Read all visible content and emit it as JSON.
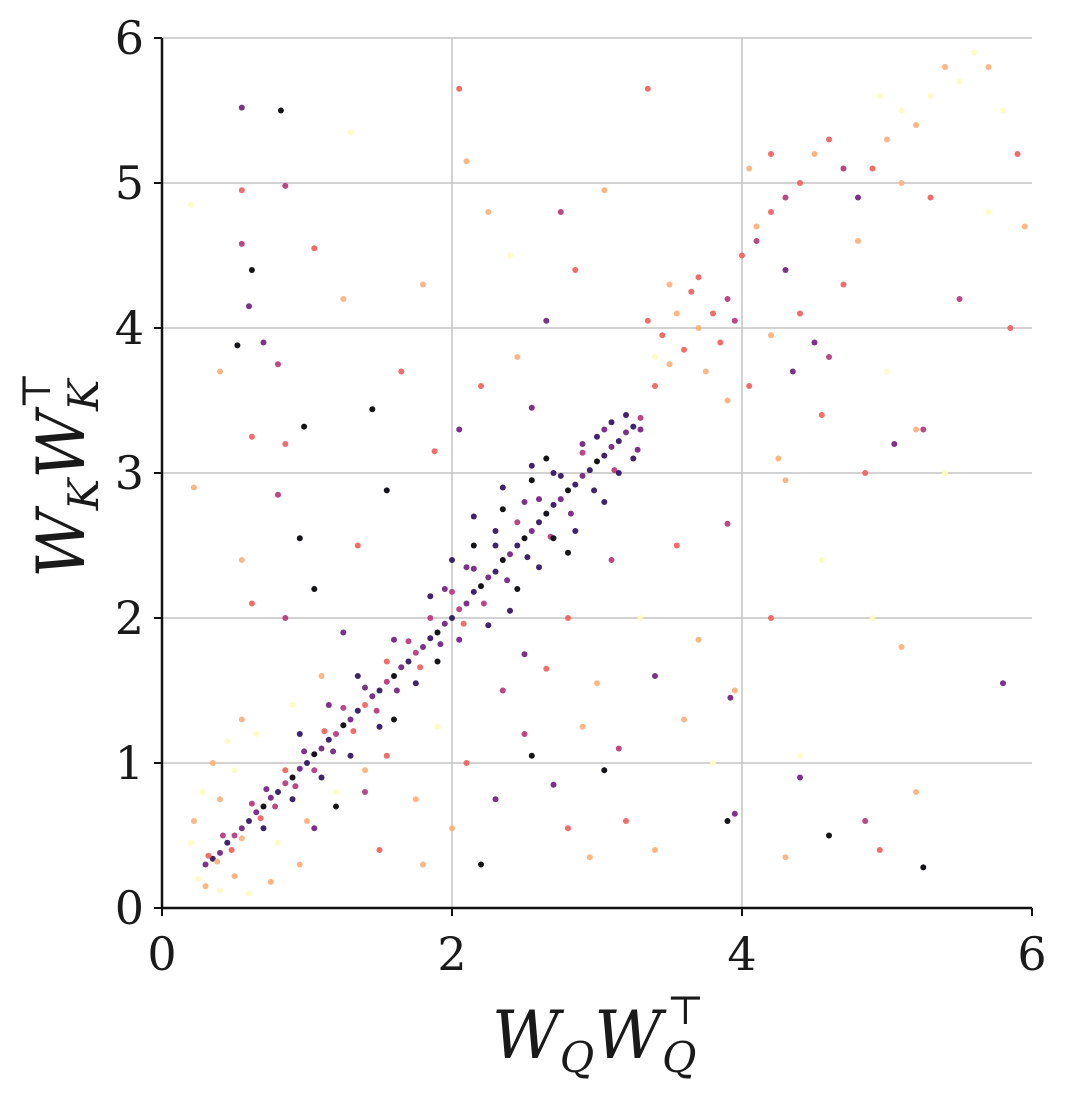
{
  "chart_data": {
    "type": "scatter",
    "xlabel": {
      "base": "W",
      "sub": "Q",
      "base2": "W",
      "sub2": "Q",
      "sup2": "⊤"
    },
    "ylabel": {
      "base": "W",
      "sub": "K",
      "base2": "W",
      "sub2": "K",
      "sup2": "⊤"
    },
    "xlim": [
      0,
      6
    ],
    "ylim": [
      0,
      6
    ],
    "x_ticks": [
      0,
      2,
      4,
      6
    ],
    "y_ticks": [
      0,
      1,
      2,
      3,
      4,
      5,
      6
    ],
    "x_tick_labels": [
      "0",
      "2",
      "4",
      "6"
    ],
    "y_tick_labels": [
      "0",
      "1",
      "2",
      "3",
      "4",
      "5",
      "6"
    ],
    "x_gridlines": [
      2,
      4
    ],
    "y_gridlines": [
      1,
      2,
      3,
      4,
      5,
      6
    ],
    "grid": true,
    "colormap": [
      "#000004",
      "#2c115f",
      "#721f81",
      "#b73779",
      "#f1605d",
      "#feb078",
      "#fcfdbf"
    ],
    "points": [
      [
        0.3,
        0.3,
        2
      ],
      [
        0.35,
        0.34,
        1
      ],
      [
        0.4,
        0.38,
        2
      ],
      [
        0.45,
        0.45,
        1
      ],
      [
        0.5,
        0.5,
        3
      ],
      [
        0.55,
        0.55,
        2
      ],
      [
        0.6,
        0.6,
        1
      ],
      [
        0.65,
        0.66,
        2
      ],
      [
        0.7,
        0.7,
        0
      ],
      [
        0.75,
        0.76,
        2
      ],
      [
        0.8,
        0.8,
        1
      ],
      [
        0.85,
        0.86,
        3
      ],
      [
        0.9,
        0.9,
        0
      ],
      [
        0.95,
        0.96,
        2
      ],
      [
        1.0,
        1.0,
        1
      ],
      [
        1.05,
        1.06,
        0
      ],
      [
        1.1,
        1.1,
        2
      ],
      [
        1.15,
        1.16,
        1
      ],
      [
        1.2,
        1.2,
        3
      ],
      [
        1.25,
        1.26,
        0
      ],
      [
        1.3,
        1.3,
        2
      ],
      [
        1.35,
        1.36,
        1
      ],
      [
        1.4,
        1.4,
        4
      ],
      [
        1.45,
        1.46,
        2
      ],
      [
        1.5,
        1.5,
        1
      ],
      [
        1.55,
        1.56,
        3
      ],
      [
        1.6,
        1.6,
        0
      ],
      [
        1.65,
        1.66,
        2
      ],
      [
        1.7,
        1.7,
        1
      ],
      [
        1.75,
        1.76,
        3
      ],
      [
        1.8,
        1.8,
        2
      ],
      [
        1.85,
        1.86,
        1
      ],
      [
        1.9,
        1.9,
        0
      ],
      [
        1.95,
        1.96,
        2
      ],
      [
        2.0,
        2.0,
        1
      ],
      [
        2.05,
        2.06,
        3
      ],
      [
        2.1,
        2.1,
        2
      ],
      [
        2.15,
        2.18,
        1
      ],
      [
        2.2,
        2.22,
        0
      ],
      [
        2.25,
        2.28,
        2
      ],
      [
        2.3,
        2.32,
        1
      ],
      [
        2.35,
        2.4,
        0
      ],
      [
        2.4,
        2.44,
        2
      ],
      [
        2.45,
        2.5,
        1
      ],
      [
        2.5,
        2.55,
        0
      ],
      [
        2.55,
        2.6,
        2
      ],
      [
        2.6,
        2.66,
        1
      ],
      [
        2.65,
        2.72,
        0
      ],
      [
        2.7,
        2.78,
        1
      ],
      [
        2.75,
        2.82,
        2
      ],
      [
        2.8,
        2.88,
        0
      ],
      [
        2.85,
        2.92,
        1
      ],
      [
        2.9,
        2.98,
        2
      ],
      [
        2.95,
        3.02,
        1
      ],
      [
        3.0,
        3.08,
        0
      ],
      [
        3.05,
        3.12,
        1
      ],
      [
        3.1,
        3.18,
        2
      ],
      [
        3.15,
        3.22,
        1
      ],
      [
        3.2,
        3.28,
        2
      ],
      [
        3.25,
        3.32,
        1
      ],
      [
        3.3,
        3.38,
        3
      ],
      [
        0.32,
        0.36,
        4
      ],
      [
        0.38,
        0.32,
        5
      ],
      [
        0.42,
        0.5,
        3
      ],
      [
        0.48,
        0.4,
        4
      ],
      [
        0.55,
        0.48,
        5
      ],
      [
        0.62,
        0.72,
        3
      ],
      [
        0.68,
        0.62,
        4
      ],
      [
        0.72,
        0.82,
        2
      ],
      [
        0.78,
        0.7,
        3
      ],
      [
        0.85,
        0.95,
        4
      ],
      [
        0.92,
        0.84,
        3
      ],
      [
        0.98,
        1.08,
        2
      ],
      [
        1.05,
        0.95,
        3
      ],
      [
        1.12,
        1.22,
        4
      ],
      [
        1.18,
        1.08,
        2
      ],
      [
        1.25,
        1.38,
        3
      ],
      [
        1.32,
        1.22,
        4
      ],
      [
        1.4,
        1.52,
        2
      ],
      [
        1.48,
        1.36,
        3
      ],
      [
        1.55,
        1.7,
        4
      ],
      [
        1.62,
        1.5,
        2
      ],
      [
        1.7,
        1.84,
        3
      ],
      [
        1.78,
        1.66,
        4
      ],
      [
        1.85,
        2.0,
        3
      ],
      [
        1.92,
        1.82,
        2
      ],
      [
        2.0,
        2.18,
        3
      ],
      [
        2.08,
        1.96,
        4
      ],
      [
        2.15,
        2.34,
        2
      ],
      [
        2.22,
        2.1,
        3
      ],
      [
        2.3,
        2.5,
        1
      ],
      [
        2.38,
        2.26,
        2
      ],
      [
        2.45,
        2.66,
        3
      ],
      [
        2.52,
        2.42,
        1
      ],
      [
        2.6,
        2.82,
        2
      ],
      [
        2.68,
        2.56,
        3
      ],
      [
        2.75,
        2.98,
        1
      ],
      [
        2.82,
        2.72,
        2
      ],
      [
        2.9,
        3.14,
        3
      ],
      [
        2.98,
        2.88,
        1
      ],
      [
        3.05,
        3.3,
        2
      ],
      [
        3.12,
        3.02,
        3
      ],
      [
        3.2,
        3.4,
        1
      ],
      [
        3.28,
        3.16,
        2
      ],
      [
        0.25,
        0.2,
        6
      ],
      [
        0.3,
        0.15,
        5
      ],
      [
        0.4,
        0.12,
        6
      ],
      [
        0.5,
        0.22,
        5
      ],
      [
        0.6,
        0.1,
        6
      ],
      [
        0.75,
        0.18,
        5
      ],
      [
        0.2,
        0.45,
        6
      ],
      [
        0.22,
        0.6,
        5
      ],
      [
        0.28,
        0.8,
        6
      ],
      [
        0.35,
        1.0,
        5
      ],
      [
        0.45,
        1.15,
        6
      ],
      [
        0.55,
        1.3,
        5
      ],
      [
        0.65,
        1.2,
        6
      ],
      [
        0.5,
        0.95,
        6
      ],
      [
        0.4,
        0.75,
        5
      ],
      [
        0.8,
        0.45,
        6
      ],
      [
        1.0,
        0.6,
        5
      ],
      [
        1.2,
        0.8,
        6
      ],
      [
        1.4,
        0.95,
        5
      ],
      [
        0.9,
        1.4,
        6
      ],
      [
        1.1,
        1.6,
        5
      ],
      [
        3.4,
        3.6,
        4
      ],
      [
        3.5,
        3.75,
        5
      ],
      [
        3.6,
        3.85,
        4
      ],
      [
        3.7,
        4.0,
        5
      ],
      [
        3.8,
        4.1,
        4
      ],
      [
        3.9,
        4.2,
        3
      ],
      [
        3.45,
        3.95,
        4
      ],
      [
        3.55,
        4.1,
        5
      ],
      [
        3.65,
        4.25,
        4
      ],
      [
        3.75,
        3.7,
        5
      ],
      [
        3.85,
        3.9,
        4
      ],
      [
        3.95,
        4.05,
        3
      ],
      [
        3.35,
        4.05,
        4
      ],
      [
        3.5,
        4.3,
        5
      ],
      [
        3.7,
        4.35,
        4
      ],
      [
        3.4,
        3.8,
        6
      ],
      [
        4.0,
        4.5,
        4
      ],
      [
        4.1,
        4.7,
        5
      ],
      [
        4.2,
        4.8,
        4
      ],
      [
        4.3,
        4.9,
        3
      ],
      [
        4.4,
        5.0,
        4
      ],
      [
        4.5,
        5.2,
        5
      ],
      [
        4.6,
        5.3,
        4
      ],
      [
        4.7,
        5.1,
        3
      ],
      [
        4.8,
        4.9,
        2
      ],
      [
        4.9,
        5.1,
        4
      ],
      [
        5.0,
        5.3,
        5
      ],
      [
        5.1,
        5.5,
        6
      ],
      [
        5.2,
        5.4,
        5
      ],
      [
        5.3,
        5.6,
        6
      ],
      [
        5.4,
        5.8,
        5
      ],
      [
        5.5,
        5.7,
        6
      ],
      [
        5.6,
        5.9,
        6
      ],
      [
        5.7,
        5.8,
        5
      ],
      [
        5.8,
        5.5,
        6
      ],
      [
        5.9,
        5.2,
        4
      ],
      [
        5.95,
        4.7,
        5
      ],
      [
        5.85,
        4.0,
        4
      ],
      [
        5.7,
        4.8,
        6
      ],
      [
        5.5,
        4.2,
        3
      ],
      [
        5.3,
        4.9,
        4
      ],
      [
        5.1,
        5.0,
        5
      ],
      [
        4.95,
        5.6,
        6
      ],
      [
        4.2,
        5.2,
        4
      ],
      [
        4.05,
        5.1,
        5
      ],
      [
        4.1,
        4.6,
        3
      ],
      [
        4.3,
        4.4,
        2
      ],
      [
        4.4,
        4.1,
        4
      ],
      [
        4.5,
        3.9,
        2
      ],
      [
        4.6,
        3.8,
        3
      ],
      [
        4.7,
        4.3,
        4
      ],
      [
        4.8,
        4.6,
        5
      ],
      [
        5.0,
        3.7,
        6
      ],
      [
        5.2,
        3.3,
        5
      ],
      [
        5.4,
        3.0,
        6
      ],
      [
        3.9,
        3.5,
        5
      ],
      [
        4.05,
        3.6,
        4
      ],
      [
        4.2,
        3.95,
        5
      ],
      [
        4.35,
        3.7,
        2
      ],
      [
        4.25,
        3.1,
        5
      ],
      [
        4.55,
        3.4,
        4
      ],
      [
        4.85,
        3.0,
        4
      ],
      [
        5.05,
        3.2,
        2
      ],
      [
        5.25,
        3.3,
        3
      ],
      [
        0.55,
        5.52,
        2
      ],
      [
        0.82,
        5.5,
        0
      ],
      [
        0.2,
        4.85,
        6
      ],
      [
        0.55,
        4.95,
        4
      ],
      [
        0.85,
        4.98,
        3
      ],
      [
        0.55,
        4.58,
        3
      ],
      [
        0.62,
        4.4,
        0
      ],
      [
        0.6,
        4.15,
        2
      ],
      [
        0.52,
        3.88,
        0
      ],
      [
        0.7,
        3.9,
        2
      ],
      [
        0.8,
        3.75,
        3
      ],
      [
        0.4,
        3.7,
        5
      ],
      [
        0.62,
        3.25,
        4
      ],
      [
        0.85,
        3.2,
        4
      ],
      [
        0.98,
        3.32,
        0
      ],
      [
        1.45,
        3.44,
        0
      ],
      [
        1.55,
        2.88,
        0
      ],
      [
        0.8,
        2.85,
        3
      ],
      [
        0.95,
        2.55,
        0
      ],
      [
        0.22,
        2.9,
        5
      ],
      [
        0.55,
        2.4,
        5
      ],
      [
        0.62,
        2.1,
        4
      ],
      [
        0.85,
        2.0,
        3
      ],
      [
        1.05,
        2.2,
        0
      ],
      [
        1.25,
        1.9,
        2
      ],
      [
        1.35,
        2.5,
        4
      ],
      [
        1.65,
        3.7,
        4
      ],
      [
        1.8,
        4.3,
        5
      ],
      [
        1.25,
        4.2,
        5
      ],
      [
        1.05,
        4.55,
        4
      ],
      [
        1.3,
        5.35,
        6
      ],
      [
        2.05,
        5.65,
        4
      ],
      [
        2.1,
        5.15,
        5
      ],
      [
        2.25,
        4.8,
        5
      ],
      [
        2.4,
        4.5,
        6
      ],
      [
        2.65,
        4.05,
        2
      ],
      [
        2.75,
        4.8,
        3
      ],
      [
        2.85,
        4.4,
        4
      ],
      [
        3.05,
        4.95,
        5
      ],
      [
        3.35,
        5.65,
        4
      ],
      [
        2.05,
        3.3,
        2
      ],
      [
        2.2,
        3.6,
        4
      ],
      [
        2.45,
        3.8,
        5
      ],
      [
        2.55,
        3.45,
        2
      ],
      [
        2.65,
        3.1,
        0
      ],
      [
        1.88,
        3.15,
        4
      ],
      [
        2.2,
        0.3,
        0
      ],
      [
        1.8,
        0.3,
        5
      ],
      [
        2.0,
        0.55,
        5
      ],
      [
        2.3,
        0.75,
        2
      ],
      [
        2.1,
        1.0,
        4
      ],
      [
        2.5,
        1.2,
        3
      ],
      [
        2.55,
        1.05,
        0
      ],
      [
        2.7,
        0.85,
        2
      ],
      [
        2.8,
        0.55,
        4
      ],
      [
        2.95,
        0.35,
        5
      ],
      [
        3.05,
        0.95,
        0
      ],
      [
        3.2,
        0.6,
        4
      ],
      [
        3.4,
        0.4,
        5
      ],
      [
        3.6,
        1.3,
        5
      ],
      [
        3.8,
        1.0,
        6
      ],
      [
        3.9,
        0.6,
        0
      ],
      [
        3.95,
        0.65,
        2
      ],
      [
        3.92,
        1.45,
        2
      ],
      [
        3.95,
        1.5,
        5
      ],
      [
        4.2,
        2.0,
        4
      ],
      [
        4.3,
        0.35,
        5
      ],
      [
        4.4,
        0.9,
        2
      ],
      [
        4.6,
        0.5,
        0
      ],
      [
        4.85,
        0.6,
        3
      ],
      [
        4.95,
        0.4,
        4
      ],
      [
        5.2,
        0.8,
        5
      ],
      [
        5.25,
        0.28,
        0
      ],
      [
        5.8,
        1.55,
        2
      ],
      [
        4.4,
        1.05,
        6
      ],
      [
        3.7,
        1.85,
        5
      ],
      [
        3.3,
        2.0,
        6
      ],
      [
        3.0,
        1.55,
        5
      ],
      [
        2.8,
        2.0,
        4
      ],
      [
        3.1,
        2.4,
        3
      ],
      [
        3.55,
        2.5,
        4
      ],
      [
        3.9,
        2.65,
        3
      ],
      [
        4.3,
        2.95,
        5
      ],
      [
        4.55,
        2.4,
        6
      ],
      [
        4.9,
        2.0,
        6
      ],
      [
        5.1,
        1.8,
        5
      ],
      [
        1.5,
        0.4,
        4
      ],
      [
        1.4,
        0.8,
        3
      ],
      [
        1.2,
        0.7,
        0
      ],
      [
        1.05,
        0.55,
        2
      ],
      [
        0.95,
        0.3,
        5
      ],
      [
        1.55,
        1.05,
        4
      ],
      [
        1.75,
        0.75,
        5
      ],
      [
        1.9,
        1.25,
        6
      ],
      [
        2.35,
        1.5,
        3
      ],
      [
        2.5,
        1.75,
        2
      ],
      [
        2.65,
        1.65,
        4
      ],
      [
        2.9,
        1.25,
        5
      ],
      [
        3.15,
        1.1,
        3
      ],
      [
        3.4,
        1.6,
        2
      ],
      [
        1.6,
        1.3,
        0
      ],
      [
        1.9,
        1.7,
        0
      ],
      [
        2.15,
        2.5,
        0
      ],
      [
        2.35,
        2.75,
        0
      ],
      [
        2.55,
        2.95,
        0
      ],
      [
        2.45,
        2.2,
        0
      ],
      [
        2.7,
        2.55,
        0
      ],
      [
        2.8,
        2.45,
        0
      ],
      [
        2.25,
        1.95,
        1
      ],
      [
        2.4,
        2.05,
        1
      ],
      [
        2.6,
        2.35,
        1
      ],
      [
        2.85,
        2.6,
        1
      ],
      [
        3.05,
        2.8,
        1
      ],
      [
        3.15,
        3.0,
        1
      ],
      [
        3.25,
        3.1,
        1
      ],
      [
        3.0,
        3.25,
        1
      ],
      [
        2.55,
        3.05,
        1
      ],
      [
        2.35,
        2.9,
        1
      ],
      [
        2.15,
        2.7,
        1
      ],
      [
        2.0,
        2.4,
        1
      ],
      [
        1.95,
        2.2,
        2
      ],
      [
        2.05,
        1.85,
        2
      ],
      [
        1.75,
        1.55,
        1
      ],
      [
        1.5,
        1.25,
        1
      ],
      [
        1.3,
        1.05,
        1
      ],
      [
        1.1,
        0.9,
        1
      ],
      [
        0.9,
        0.75,
        1
      ],
      [
        0.7,
        0.55,
        1
      ],
      [
        0.95,
        1.2,
        1
      ],
      [
        1.15,
        1.4,
        2
      ],
      [
        1.35,
        1.6,
        1
      ],
      [
        1.6,
        1.85,
        2
      ],
      [
        1.85,
        2.15,
        1
      ],
      [
        2.1,
        2.35,
        2
      ],
      [
        2.3,
        2.6,
        1
      ],
      [
        2.5,
        2.8,
        2
      ],
      [
        2.7,
        3.0,
        1
      ],
      [
        2.9,
        3.2,
        2
      ],
      [
        3.1,
        3.35,
        1
      ],
      [
        3.3,
        3.3,
        2
      ]
    ]
  }
}
